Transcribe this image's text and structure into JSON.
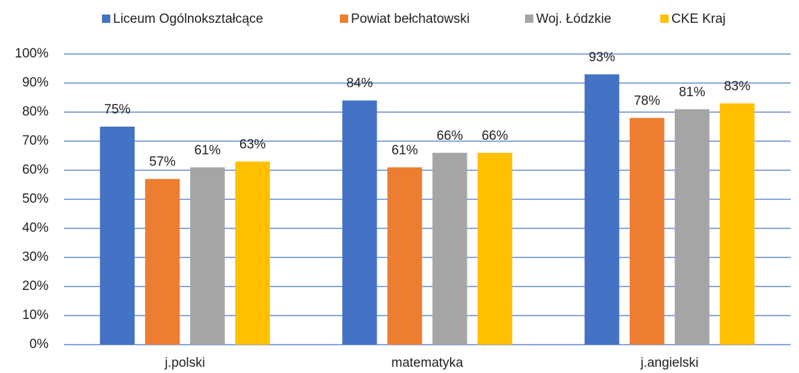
{
  "chart_data": {
    "type": "bar",
    "categories": [
      "j.polski",
      "matematyka",
      "j.angielski"
    ],
    "series": [
      {
        "name": "Liceum Ogólnokształcące",
        "color": "#4472c4",
        "values": [
          75,
          84,
          93
        ],
        "value_labels": [
          "75%",
          "84%",
          "93%"
        ]
      },
      {
        "name": "Powiat bełchatowski",
        "color": "#ed7d31",
        "values": [
          57,
          61,
          78
        ],
        "value_labels": [
          "57%",
          "61%",
          "78%"
        ]
      },
      {
        "name": "Woj. Łódzkie",
        "color": "#a5a5a5",
        "values": [
          61,
          66,
          81
        ],
        "value_labels": [
          "61%",
          "66%",
          "81%"
        ]
      },
      {
        "name": "CKE Kraj",
        "color": "#ffc000",
        "values": [
          63,
          66,
          83
        ],
        "value_labels": [
          "63%",
          "66%",
          "83%"
        ]
      }
    ],
    "ylim": [
      0,
      100
    ],
    "yticks": [
      {
        "value": 0,
        "label": "0%"
      },
      {
        "value": 10,
        "label": "10%"
      },
      {
        "value": 20,
        "label": "20%"
      },
      {
        "value": 30,
        "label": "30%"
      },
      {
        "value": 40,
        "label": "40%"
      },
      {
        "value": 50,
        "label": "50%"
      },
      {
        "value": 60,
        "label": "60%"
      },
      {
        "value": 70,
        "label": "70%"
      },
      {
        "value": 80,
        "label": "80%"
      },
      {
        "value": 90,
        "label": "90%"
      },
      {
        "value": 100,
        "label": "100%"
      }
    ],
    "grid": true,
    "legend": "top"
  }
}
